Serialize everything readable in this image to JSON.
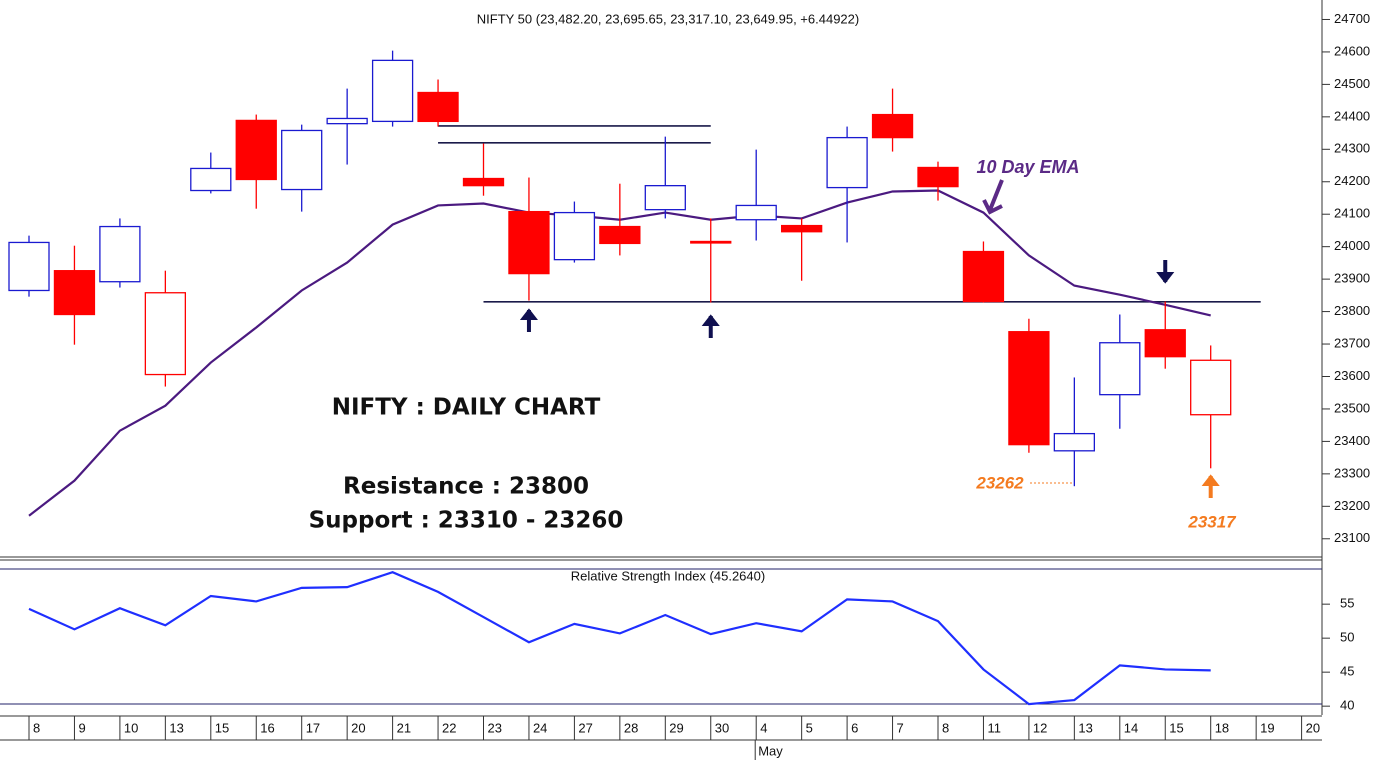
{
  "chart_data": [
    {
      "type": "candlestick",
      "title": "NIFTY 50 (23,482.20, 23,695.65, 23,317.10, 23,649.95, +6.44922)",
      "categories": [
        "8",
        "9",
        "10",
        "13",
        "15",
        "16",
        "17",
        "20",
        "21",
        "22",
        "23",
        "24",
        "27",
        "28",
        "29",
        "30",
        "4",
        "5",
        "6",
        "7",
        "8",
        "11",
        "12",
        "13",
        "14",
        "15",
        "18",
        "19",
        "20"
      ],
      "month": "May",
      "open": [
        23865,
        23926,
        23892,
        23606,
        24173,
        24389,
        24176,
        24379,
        24386,
        24475,
        24210,
        24108,
        23960,
        24062,
        24114,
        24016,
        24083,
        24065,
        24182,
        24407,
        24244,
        23985,
        23738,
        23371,
        23544,
        23744,
        23482.2,
        null,
        null
      ],
      "high": [
        24034,
        24003,
        24087,
        23926,
        24290,
        24407,
        24376,
        24487,
        24604,
        24515,
        24318,
        24213,
        24139,
        24194,
        24339,
        24087,
        24299,
        24087,
        24370,
        24487,
        24262,
        24016,
        23778,
        23597,
        23791,
        23831,
        23695.65,
        null,
        null
      ],
      "low": [
        23846,
        23698,
        23874,
        23569,
        24164,
        24117,
        24108,
        24253,
        24370,
        24370,
        24157,
        23834,
        23951,
        23973,
        24087,
        23828,
        24019,
        23895,
        24013,
        24293,
        24142,
        23828,
        23365,
        23262,
        23439,
        23624,
        23317.1,
        null,
        null
      ],
      "close": [
        24013,
        23791,
        24062,
        23858,
        24241,
        24207,
        24358,
        24395,
        24574,
        24386,
        24188,
        23917,
        24105,
        24010,
        24188,
        24013,
        24127,
        24046,
        24336,
        24336,
        24185,
        23831,
        23390,
        23424,
        23704,
        23661,
        23649.95,
        null,
        null
      ],
      "up_color": "#1a1ad0",
      "down_color": "#ff0000",
      "series": [
        {
          "name": "10 Day EMA",
          "color": "#4b1a80",
          "values": [
            23171,
            23279,
            23433,
            23510,
            23643,
            23751,
            23865,
            23951,
            24068,
            24127,
            24133,
            24105,
            24096,
            24083,
            24105,
            24083,
            24096,
            24087,
            24136,
            24170,
            24173,
            24105,
            23973,
            23880,
            23852,
            23821,
            23788,
            null,
            null
          ]
        }
      ],
      "hlines": [
        {
          "value": 23830,
          "from": 10,
          "to": 27.1,
          "color": "#1a1a4a"
        },
        {
          "value": 24372,
          "from": 9,
          "to": 15,
          "color": "#1a1a4a"
        },
        {
          "value": 24320,
          "from": 9,
          "to": 15,
          "color": "#1a1a4a"
        }
      ],
      "ylim": [
        23050,
        24760
      ],
      "yticks": [
        23100,
        23200,
        23300,
        23400,
        23500,
        23600,
        23700,
        23800,
        23900,
        24000,
        24100,
        24200,
        24300,
        24400,
        24500,
        24600,
        24700
      ],
      "annotations": {
        "heading": "NIFTY : DAILY CHART",
        "resistance": "Resistance : 23800",
        "support": "Support : 23310 - 23260",
        "low_1": "23262",
        "low_2": "23317"
      }
    },
    {
      "type": "line",
      "title": "Relative Strength Index (45.2640)",
      "series": [
        {
          "color": "#1f2fff",
          "values": [
            54.3,
            51.3,
            54.4,
            51.9,
            56.2,
            55.4,
            57.4,
            57.5,
            59.7,
            56.8,
            53.1,
            49.4,
            52.1,
            50.7,
            53.4,
            50.6,
            52.2,
            51.0,
            55.7,
            55.4,
            52.5,
            45.4,
            40.3,
            40.9,
            46.0,
            45.4,
            45.264,
            null,
            null
          ]
        }
      ],
      "ylim": [
        38.7,
        61.2
      ],
      "yticks": [
        40,
        45,
        50,
        55
      ]
    }
  ]
}
